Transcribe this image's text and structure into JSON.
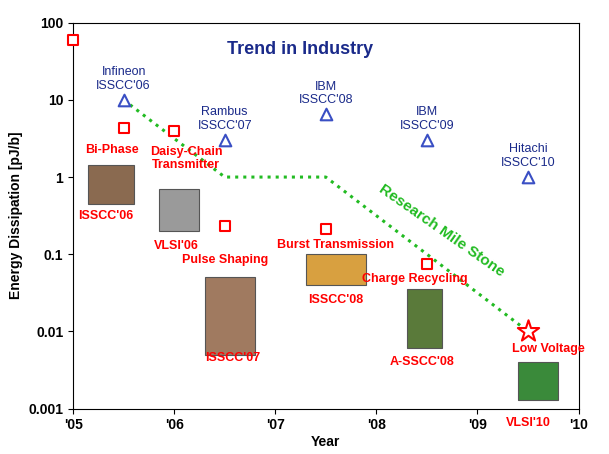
{
  "chart_data": {
    "type": "scatter",
    "title": "Trend in Industry",
    "x_label": "Year",
    "y_label": "Energy Dissipation [pJ/b]",
    "log": "y",
    "grid": false,
    "xlim": [
      2005,
      2010
    ],
    "xticks": [
      {
        "value": 2005,
        "label": "'05"
      },
      {
        "value": 2006,
        "label": "'06"
      },
      {
        "value": 2007,
        "label": "'07"
      },
      {
        "value": 2008,
        "label": "'08"
      },
      {
        "value": 2009,
        "label": "'09"
      },
      {
        "value": 2010,
        "label": "'10"
      }
    ],
    "ylim": [
      0.001,
      100
    ],
    "yticks": [
      0.001,
      0.01,
      0.1,
      1,
      10,
      100
    ],
    "series": [
      {
        "type": "scatter",
        "color": "#3a4fc4",
        "marker": "triangle",
        "x": [
          2005.5,
          2006.5,
          2007.5,
          2008.5,
          2009.5
        ],
        "values": [
          10,
          3,
          6.5,
          3,
          1
        ],
        "labels": [
          "Infineon\nISSCC'06",
          "Rambus\nISSCC'07",
          "IBM\nISSCC'08",
          "IBM\nISSCC'09",
          "Hitachi\nISSCC'10"
        ]
      },
      {
        "type": "scatter",
        "color": "#ff0000",
        "marker": "square",
        "x": [
          2005.0,
          2005.5,
          2006.0,
          2006.5,
          2007.5,
          2008.5
        ],
        "values": [
          60,
          4.3,
          4.0,
          0.23,
          0.21,
          0.075
        ],
        "labels": [
          null,
          "Bi-Phase",
          "Daisy-Chain\nTransmitter",
          "Pulse Shaping",
          "Burst Transmission",
          "Charge Recycling"
        ],
        "venues": [
          null,
          "ISSCC'06",
          "VLSI'06",
          "ISSCC'07",
          "ISSCC'08",
          "A-SSCC'08"
        ]
      },
      {
        "type": "scatter",
        "color": "#ff0000",
        "marker": "star",
        "x": [
          2009.5
        ],
        "values": [
          0.01
        ],
        "labels": [
          "Low Voltage"
        ],
        "venues": [
          "VLSI'10"
        ]
      },
      {
        "type": "line",
        "name": "Research Mile Stone",
        "color": "#22bb22",
        "line_style": "dotted",
        "x": [
          2005.5,
          2006.5,
          2007.5,
          2009.5
        ],
        "values": [
          10,
          1,
          1,
          0.01
        ]
      }
    ]
  }
}
